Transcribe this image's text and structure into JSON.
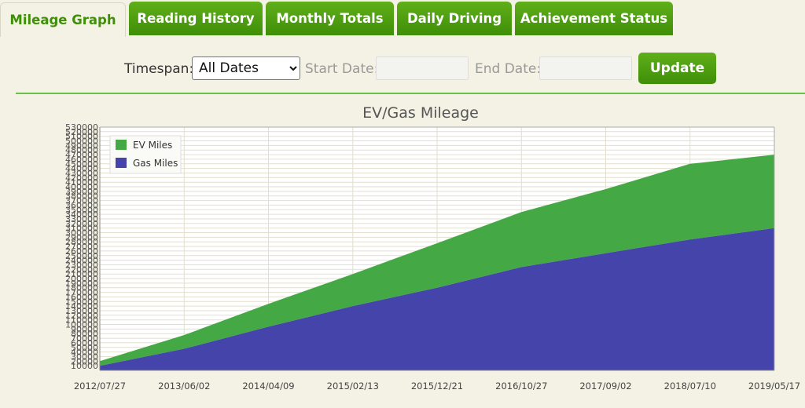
{
  "tabs": [
    {
      "label": "Mileage Graph",
      "active": true
    },
    {
      "label": "Reading History",
      "active": false
    },
    {
      "label": "Monthly Totals",
      "active": false
    },
    {
      "label": "Daily Driving",
      "active": false
    },
    {
      "label": "Achievement Status",
      "active": false
    }
  ],
  "controls": {
    "timespan_label": "Timespan:",
    "timespan_selected": "All Dates",
    "start_label": "Start Date:",
    "start_value": "",
    "end_label": "End Date:",
    "end_value": "",
    "update_label": "Update"
  },
  "colors": {
    "accent": "#4b9e10",
    "ev": "#44a944",
    "gas": "#4444aa"
  },
  "chart_data": {
    "type": "area",
    "stacked": true,
    "title": "EV/Gas Mileage",
    "x": [
      "2012/07/27",
      "2013/06/02",
      "2014/04/09",
      "2015/02/13",
      "2015/12/21",
      "2016/10/27",
      "2017/09/02",
      "2018/07/10",
      "2019/05/17"
    ],
    "series": [
      {
        "name": "Gas Miles",
        "color": "#4444aa",
        "values": [
          10000,
          47000,
          95000,
          140000,
          180000,
          225000,
          255000,
          285000,
          310000
        ]
      },
      {
        "name": "EV Miles",
        "color": "#44a944",
        "values": [
          10000,
          30000,
          50000,
          70000,
          97000,
          120000,
          140000,
          165000,
          160000
        ]
      }
    ],
    "yticks": [
      10000,
      20000,
      30000,
      40000,
      50000,
      60000,
      70000,
      80000,
      90000,
      100000,
      110000,
      120000,
      130000,
      140000,
      150000,
      160000,
      170000,
      180000,
      190000,
      200000,
      210000,
      220000,
      230000,
      240000,
      250000,
      260000,
      270000,
      280000,
      290000,
      300000,
      310000,
      320000,
      330000,
      340000,
      350000,
      360000,
      370000,
      380000,
      390000,
      400000,
      410000,
      420000,
      430000,
      440000,
      450000,
      460000,
      470000,
      480000,
      490000,
      500000,
      510000,
      520000,
      530000
    ],
    "ylim": [
      0,
      530000
    ],
    "legend": "top-left",
    "grid": true
  }
}
